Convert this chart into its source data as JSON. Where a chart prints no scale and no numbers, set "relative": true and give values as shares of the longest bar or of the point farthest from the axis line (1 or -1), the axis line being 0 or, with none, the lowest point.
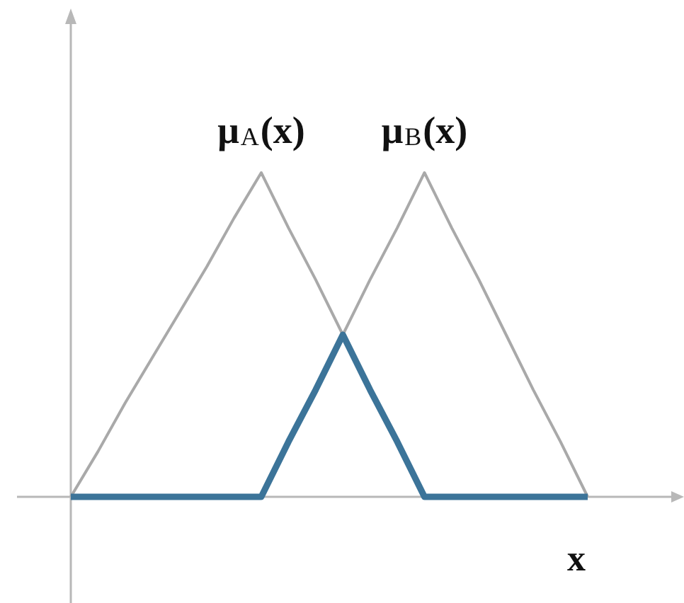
{
  "chart_data": {
    "type": "line",
    "relative": true,
    "xlabel": "x",
    "marker": "none",
    "categories": [
      null,
      null,
      null,
      null,
      null,
      null,
      null,
      null,
      null,
      null,
      null,
      null,
      null,
      null,
      null,
      null,
      null,
      null,
      null,
      null
    ],
    "series": [
      {
        "name": "μ$_{A}$(x)",
        "color": "#a9a9a9",
        "values": [
          0,
          0.14,
          0.29,
          0.43,
          0.57,
          0.71,
          0.86,
          1,
          0.83,
          0.67,
          0.5,
          0.33,
          0.17,
          0,
          null,
          null,
          null,
          null,
          null,
          null
        ]
      },
      {
        "name": "μ$_{B}$(x)",
        "color": "#a9a9a9",
        "values": [
          null,
          null,
          null,
          null,
          null,
          null,
          null,
          0,
          0.17,
          0.33,
          0.5,
          0.67,
          0.83,
          1,
          0.83,
          0.67,
          0.5,
          0.33,
          0.17,
          0
        ]
      },
      {
        "color": "#3c7499",
        "values": [
          0,
          0,
          0,
          0,
          0,
          0,
          0,
          0,
          0.17,
          0.33,
          0.5,
          0.33,
          0.17,
          0,
          0,
          0,
          0,
          0,
          0,
          0
        ]
      }
    ]
  }
}
